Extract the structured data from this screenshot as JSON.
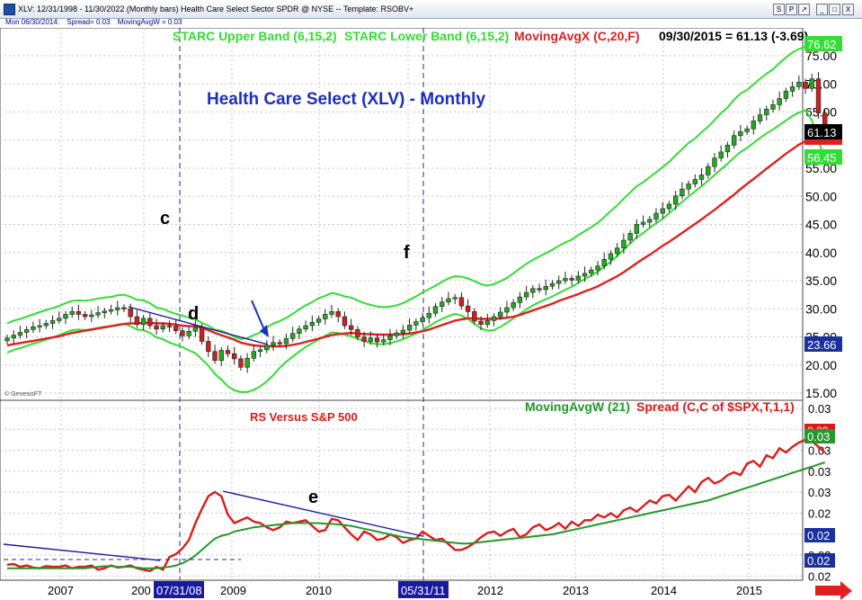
{
  "window": {
    "title": "XLV: 12/31/1998 - 11/30/2022 (Monthly bars)   Health Care Select Sector SPDR @ NYSE  --  Template: RSOBV+",
    "buttons": [
      "S",
      "P",
      "↗",
      "_",
      "□",
      "X"
    ]
  },
  "info_bar": {
    "date": "Mon  06/30/2014:",
    "spread": "Spread= 0.03",
    "mavg": "MovingAvgW = 0.03"
  },
  "colors": {
    "starc": "#33dd33",
    "mavg_x": "#e02020",
    "title_blue": "#1c2fc0",
    "rs_line": "#dd1a1a",
    "mavg_w": "#22992a",
    "trend": "#1a1aa0",
    "up_candle": "#22aa22",
    "down_candle": "#cc2020"
  },
  "price_panel": {
    "legend_starc_upper": "STARC Upper Band (6,15,2)",
    "legend_starc_lower": "STARC Lower Band (6,15,2)",
    "legend_mavg": "MovingAvgX (C,20,F)",
    "legend_value": "09/30/2015 = 61.13 (-3.69)",
    "chart_title": "Health Care Select (XLV) - Monthly",
    "watermark": "© GenesisFT",
    "labels": {
      "c": "c",
      "d": "d",
      "f": "f"
    },
    "badges": {
      "upper": "76.62",
      "close": "61.13",
      "lower": "56.45",
      "blue": "23.66"
    }
  },
  "rs_panel": {
    "title": "RS Versus S&P 500",
    "legend_mavg": "MovingAvgW (21)",
    "legend_spread": "Spread (C,C of $SPX,T,1,1)",
    "label_e": "e",
    "badges": {
      "red": "0.03",
      "green": "0.03",
      "blue1": "0.02",
      "blue2": "0.02"
    }
  },
  "x_axis": {
    "labels": [
      "2007",
      "200",
      "2009",
      "2010",
      "201",
      "2012",
      "2013",
      "2014",
      "2015"
    ],
    "highlight_1": "07/31/08",
    "highlight_2": "05/31/11"
  },
  "chart_data": [
    {
      "type": "candlestick",
      "title": "Health Care Select (XLV) - Monthly",
      "ylim": [
        14,
        78
      ],
      "yticks": [
        "15.00",
        "20.00",
        "25.00",
        "30.00",
        "35.00",
        "40.00",
        "45.00",
        "50.00",
        "55.00",
        "60.00",
        "65.00",
        "70.00",
        "75.00"
      ],
      "x_start": "2006-07",
      "closes": [
        24.8,
        25.3,
        25.8,
        26.3,
        26.8,
        27.0,
        27.4,
        27.9,
        28.3,
        29.0,
        29.5,
        29.0,
        28.6,
        28.9,
        29.3,
        29.6,
        29.8,
        30.2,
        30.0,
        28.6,
        27.2,
        28.3,
        27.0,
        26.4,
        27.0,
        26.9,
        26.1,
        25.2,
        26.0,
        26.7,
        24.2,
        22.4,
        20.8,
        22.6,
        22.0,
        21.1,
        19.6,
        21.2,
        22.4,
        22.7,
        23.5,
        24.0,
        23.8,
        24.7,
        25.6,
        26.4,
        27.0,
        27.6,
        28.2,
        29.0,
        29.5,
        28.6,
        27.0,
        26.3,
        25.0,
        24.2,
        24.8,
        24.1,
        24.5,
        25.2,
        25.7,
        26.2,
        27.1,
        27.7,
        28.4,
        29.2,
        30.4,
        31.2,
        31.8,
        32.0,
        30.5,
        29.5,
        27.8,
        27.2,
        27.9,
        28.6,
        29.4,
        30.2,
        31.1,
        32.1,
        32.9,
        33.6,
        33.4,
        34.0,
        34.5,
        35.0,
        35.4,
        35.1,
        35.8,
        36.3,
        36.9,
        37.6,
        38.8,
        39.8,
        40.8,
        42.2,
        43.4,
        45.0,
        45.4,
        45.9,
        47.0,
        47.8,
        48.6,
        50.1,
        51.3,
        52.2,
        53.0,
        53.8,
        55.3,
        56.8,
        57.9,
        59.1,
        60.8,
        61.5,
        62.0,
        63.4,
        64.5,
        65.5,
        66.3,
        67.4,
        68.7,
        69.5,
        70.3,
        69.2,
        70.9,
        64.8,
        61.13
      ],
      "series": [
        {
          "name": "STARC Upper Band (6,15,2)",
          "values": [
            27.4,
            27.9,
            28.2,
            28.6,
            29.0,
            29.4,
            29.8,
            30.1,
            30.5,
            31.0,
            31.4,
            31.5,
            31.4,
            31.6,
            31.8,
            32.0,
            32.1,
            32.4,
            32.5,
            32.1,
            31.6,
            31.5,
            31.0,
            30.2,
            30.0,
            29.5,
            29.1,
            28.8,
            28.4,
            28.1,
            27.5,
            27.0,
            26.3,
            26.1,
            25.6,
            25.0,
            24.6,
            24.8,
            25.3,
            25.8,
            26.7,
            27.4,
            27.8,
            28.4,
            29.1,
            29.9,
            30.6,
            31.2,
            31.9,
            32.3,
            32.8,
            32.6,
            32.2,
            32.0,
            31.5,
            31.0,
            30.7,
            30.4,
            30.3,
            30.4,
            30.6,
            31.0,
            31.6,
            32.2,
            32.9,
            33.5,
            34.1,
            34.8,
            35.4,
            35.8,
            35.7,
            35.4,
            34.9,
            34.4,
            34.1,
            34.4,
            34.9,
            35.5,
            36.3,
            37.2,
            38.0,
            38.7,
            39.3,
            39.9,
            40.5,
            41.2,
            41.8,
            42.3,
            43.1,
            43.8,
            44.5,
            45.3,
            46.3,
            47.4,
            48.4,
            49.6,
            50.7,
            51.8,
            52.5,
            53.4,
            54.3,
            55.2,
            56.1,
            57.3,
            58.4,
            59.5,
            60.3,
            61.4,
            62.4,
            63.6,
            64.8,
            65.8,
            67.2,
            68.3,
            68.9,
            69.9,
            70.9,
            71.8,
            72.6,
            73.7,
            74.7,
            75.6,
            76.2,
            76.6,
            76.6,
            76.6,
            76.62
          ]
        },
        {
          "name": "STARC Lower Band (6,15,2)",
          "values": [
            22.2,
            22.7,
            23.0,
            23.4,
            23.8,
            24.1,
            24.5,
            24.9,
            25.3,
            25.8,
            26.2,
            26.3,
            26.2,
            26.4,
            26.6,
            26.8,
            26.9,
            27.2,
            27.3,
            26.9,
            26.3,
            26.2,
            25.7,
            24.9,
            24.6,
            24.0,
            23.6,
            23.2,
            22.6,
            22.1,
            21.0,
            19.9,
            18.4,
            17.4,
            16.2,
            15.5,
            15.2,
            15.2,
            15.6,
            16.2,
            17.1,
            18.2,
            19.5,
            20.6,
            21.5,
            22.4,
            23.2,
            23.9,
            24.5,
            25.2,
            25.8,
            25.7,
            25.4,
            25.1,
            24.7,
            24.3,
            23.9,
            23.7,
            23.7,
            23.9,
            24.2,
            24.6,
            25.1,
            25.6,
            26.2,
            26.9,
            27.6,
            28.2,
            28.7,
            29.1,
            28.8,
            28.2,
            27.3,
            26.5,
            26.1,
            26.2,
            26.8,
            27.5,
            28.3,
            29.1,
            29.9,
            30.6,
            31.2,
            31.7,
            32.2,
            32.8,
            33.4,
            33.9,
            34.6,
            35.3,
            35.9,
            36.6,
            37.5,
            38.4,
            39.4,
            40.5,
            41.6,
            42.7,
            43.5,
            44.4,
            45.2,
            46.0,
            47.0,
            48.0,
            49.0,
            50.0,
            50.9,
            51.8,
            52.8,
            53.8,
            54.8,
            55.8,
            56.9,
            57.9,
            58.6,
            59.5,
            60.4,
            61.2,
            61.9,
            62.7,
            63.5,
            64.3,
            64.9,
            65.3,
            63.5,
            60.0,
            56.45
          ]
        },
        {
          "name": "MovingAvgX (C,20,F)",
          "values": [
            23.5,
            23.7,
            23.9,
            24.1,
            24.3,
            24.5,
            24.7,
            24.9,
            25.1,
            25.4,
            25.7,
            25.9,
            26.1,
            26.3,
            26.5,
            26.7,
            26.9,
            27.1,
            27.3,
            27.4,
            27.4,
            27.5,
            27.5,
            27.4,
            27.4,
            27.3,
            27.2,
            27.0,
            26.9,
            26.9,
            26.6,
            26.2,
            25.7,
            25.3,
            24.9,
            24.5,
            24.0,
            23.7,
            23.5,
            23.4,
            23.3,
            23.3,
            23.3,
            23.4,
            23.6,
            23.8,
            24.1,
            24.4,
            24.7,
            25.0,
            25.3,
            25.5,
            25.6,
            25.7,
            25.6,
            25.5,
            25.5,
            25.4,
            25.4,
            25.4,
            25.4,
            25.5,
            25.6,
            25.8,
            26.0,
            26.3,
            26.7,
            27.1,
            27.5,
            27.9,
            28.1,
            28.3,
            28.3,
            28.2,
            28.2,
            28.2,
            28.3,
            28.4,
            28.6,
            28.9,
            29.3,
            29.7,
            30.1,
            30.5,
            30.9,
            31.4,
            31.8,
            32.2,
            32.6,
            33.1,
            33.5,
            34.0,
            34.6,
            35.2,
            35.8,
            36.5,
            37.3,
            38.1,
            38.9,
            39.6,
            40.4,
            41.2,
            41.9,
            42.7,
            43.5,
            44.3,
            45.1,
            45.9,
            46.8,
            47.6,
            48.5,
            49.4,
            50.3,
            51.3,
            52.2,
            53.1,
            54.0,
            54.9,
            55.8,
            56.7,
            57.6,
            58.4,
            59.2,
            59.8,
            60.4,
            60.7,
            60.8
          ]
        }
      ]
    },
    {
      "type": "line",
      "title": "RS Versus S&P 500",
      "ylim": [
        0,
        1
      ],
      "x_start": "2006-07",
      "series": [
        {
          "name": "Spread (C,C of $SPX,T,1,1)",
          "values": [
            0.065,
            0.07,
            0.05,
            0.06,
            0.045,
            0.04,
            0.055,
            0.05,
            0.05,
            0.06,
            0.04,
            0.05,
            0.05,
            0.06,
            0.03,
            0.04,
            0.06,
            0.045,
            0.05,
            0.06,
            0.04,
            0.03,
            0.02,
            0.05,
            0.03,
            0.12,
            0.14,
            0.18,
            0.24,
            0.36,
            0.46,
            0.55,
            0.58,
            0.55,
            0.42,
            0.36,
            0.38,
            0.4,
            0.37,
            0.36,
            0.33,
            0.31,
            0.33,
            0.37,
            0.36,
            0.37,
            0.38,
            0.34,
            0.3,
            0.31,
            0.39,
            0.38,
            0.33,
            0.28,
            0.24,
            0.3,
            0.28,
            0.24,
            0.25,
            0.28,
            0.26,
            0.22,
            0.24,
            0.25,
            0.3,
            0.27,
            0.24,
            0.25,
            0.21,
            0.17,
            0.17,
            0.19,
            0.22,
            0.26,
            0.29,
            0.3,
            0.27,
            0.3,
            0.32,
            0.26,
            0.28,
            0.33,
            0.35,
            0.31,
            0.33,
            0.36,
            0.32,
            0.37,
            0.34,
            0.38,
            0.38,
            0.42,
            0.4,
            0.43,
            0.4,
            0.45,
            0.47,
            0.44,
            0.48,
            0.52,
            0.5,
            0.55,
            0.56,
            0.52,
            0.57,
            0.62,
            0.58,
            0.65,
            0.68,
            0.64,
            0.66,
            0.7,
            0.72,
            0.7,
            0.78,
            0.8,
            0.76,
            0.84,
            0.82,
            0.89,
            0.86,
            0.9,
            0.93,
            0.95,
            0.94,
            0.9,
            0.86
          ]
        },
        {
          "name": "MovingAvgW (21)",
          "values": [
            0.04,
            0.04,
            0.04,
            0.04,
            0.04,
            0.04,
            0.04,
            0.04,
            0.04,
            0.04,
            0.04,
            0.04,
            0.04,
            0.045,
            0.05,
            0.055,
            0.055,
            0.05,
            0.05,
            0.05,
            0.045,
            0.04,
            0.04,
            0.04,
            0.045,
            0.05,
            0.06,
            0.075,
            0.1,
            0.13,
            0.17,
            0.21,
            0.25,
            0.27,
            0.28,
            0.3,
            0.31,
            0.32,
            0.33,
            0.335,
            0.34,
            0.345,
            0.35,
            0.355,
            0.36,
            0.36,
            0.36,
            0.36,
            0.36,
            0.355,
            0.355,
            0.35,
            0.345,
            0.34,
            0.33,
            0.32,
            0.31,
            0.3,
            0.29,
            0.28,
            0.27,
            0.26,
            0.255,
            0.25,
            0.245,
            0.24,
            0.235,
            0.23,
            0.225,
            0.22,
            0.215,
            0.215,
            0.22,
            0.225,
            0.23,
            0.235,
            0.24,
            0.245,
            0.25,
            0.255,
            0.26,
            0.265,
            0.27,
            0.275,
            0.28,
            0.29,
            0.3,
            0.31,
            0.32,
            0.33,
            0.34,
            0.35,
            0.36,
            0.37,
            0.38,
            0.39,
            0.4,
            0.41,
            0.42,
            0.43,
            0.44,
            0.45,
            0.46,
            0.47,
            0.48,
            0.49,
            0.5,
            0.51,
            0.52,
            0.535,
            0.55,
            0.565,
            0.58,
            0.595,
            0.61,
            0.625,
            0.64,
            0.655,
            0.67,
            0.685,
            0.7,
            0.715,
            0.73,
            0.745,
            0.76,
            0.775,
            0.79
          ]
        }
      ]
    }
  ]
}
